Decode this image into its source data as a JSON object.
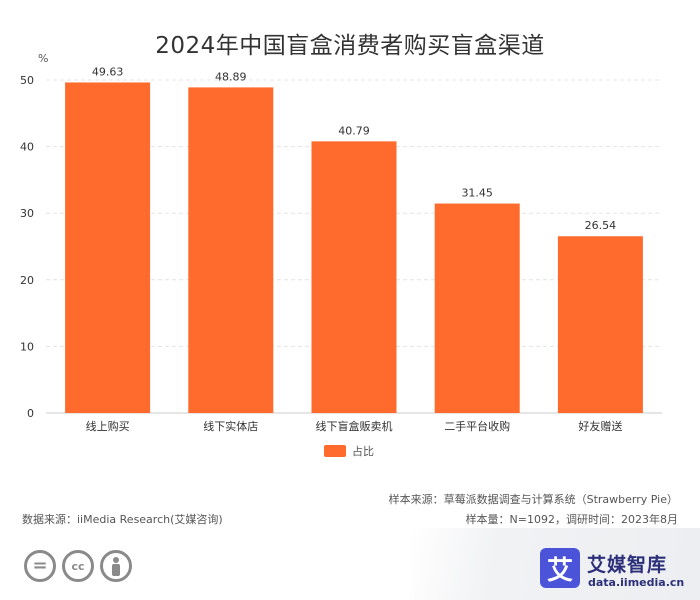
{
  "chart_data": {
    "type": "bar",
    "title": "2024年中国盲盒消费者购买盲盒渠道",
    "y_unit": "%",
    "categories": [
      "线上购买",
      "线下实体店",
      "线下盲盒贩卖机",
      "二手平台收购",
      "好友赠送"
    ],
    "series": [
      {
        "name": "占比",
        "values": [
          49.63,
          48.89,
          40.79,
          31.45,
          26.54
        ],
        "color": "#ff6b2c"
      }
    ],
    "data_labels": [
      "49.63",
      "48.89",
      "40.79",
      "31.45",
      "26.54"
    ],
    "ylim": [
      0,
      50
    ],
    "y_ticks": [
      0,
      10,
      20,
      30,
      40,
      50
    ],
    "grid": true,
    "legend_position": "bottom-center"
  },
  "source": {
    "data_source": "数据来源：iiMedia Research(艾媒咨询)",
    "sample_source": "样本来源：草莓派数据调查与计算系统（Strawberry Pie）",
    "sample_info": "样本量：N=1092，调研时间：2023年8月"
  },
  "brand": {
    "logo_char": "艾",
    "name": "艾媒智库",
    "url": "data.iimedia.cn"
  },
  "license_icons": [
    "no-derivatives-icon",
    "creative-commons-icon",
    "attribution-icon"
  ],
  "colors": {
    "bar": "#ff6b2c",
    "grid": "#e4e4e4",
    "axis_text": "#333333"
  }
}
